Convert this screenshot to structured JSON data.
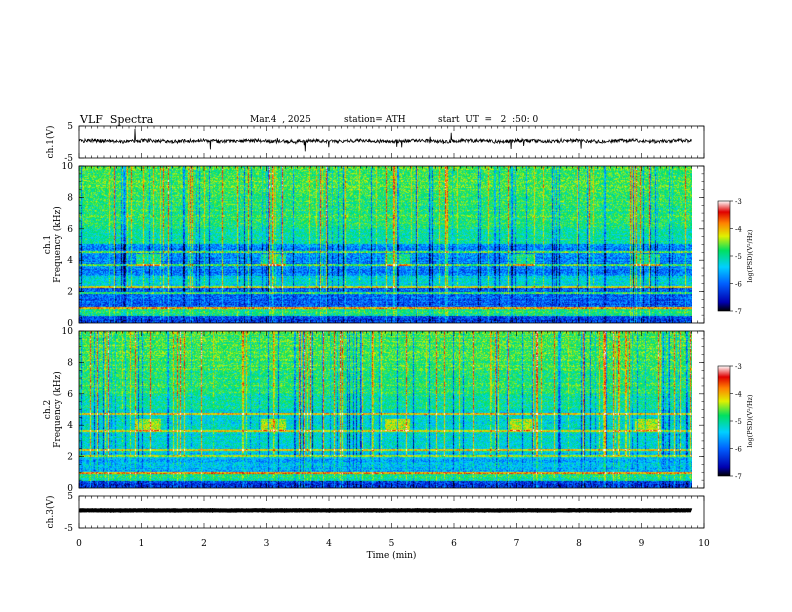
{
  "header": {
    "title": "VLF  Spectra",
    "date": "Mar.4  , 2025",
    "station": "station= ATH",
    "start": "start  UT  =   2  :50: 0"
  },
  "chart_data": [
    {
      "type": "line",
      "name": "ch1-waveform",
      "ylabel": "ch.1(V)",
      "ylim": [
        -5,
        5
      ],
      "yticks": [
        "5",
        "-5"
      ],
      "trace_level": 0.3,
      "trace_noise": 0.55
    },
    {
      "type": "heatmap",
      "name": "ch1-spectrogram",
      "ylabel": "ch.1\nFrequency  (kHz)",
      "ylabel_top": "ch.1",
      "ylabel_bottom": "Frequency  (kHz)",
      "ylim": [
        0,
        10
      ],
      "yticks": [
        "0",
        "2",
        "4",
        "6",
        "8",
        "10"
      ],
      "colorbar": {
        "label": "log(PSD)(V²/Hz)",
        "range": [
          -7,
          -3
        ],
        "ticks": [
          "-3",
          "-4",
          "-5",
          "-6",
          "-7"
        ]
      }
    },
    {
      "type": "heatmap",
      "name": "ch2-spectrogram",
      "ylabel_top": "ch.2",
      "ylabel_bottom": "Frequency  (kHz)",
      "ylim": [
        0,
        10
      ],
      "yticks": [
        "0",
        "2",
        "4",
        "6",
        "8",
        "10"
      ],
      "colorbar": {
        "label": "log(PSD)(V²/Hz)",
        "range": [
          -7,
          -3
        ],
        "ticks": [
          "-3",
          "-4",
          "-5",
          "-6",
          "-7"
        ]
      }
    },
    {
      "type": "line",
      "name": "ch3-waveform",
      "ylabel": "ch.3(V)",
      "ylim": [
        -5,
        5
      ],
      "yticks": [
        "5",
        "-5"
      ],
      "trace_level": 0.5,
      "trace_noise": 0.05
    }
  ],
  "xaxis": {
    "label": "Time  (min)",
    "range": [
      0,
      10
    ],
    "ticks": [
      "0",
      "1",
      "2",
      "3",
      "4",
      "5",
      "6",
      "7",
      "8",
      "9",
      "10"
    ],
    "data_end": 9.8
  },
  "colors": {
    "ink": "#000000"
  }
}
